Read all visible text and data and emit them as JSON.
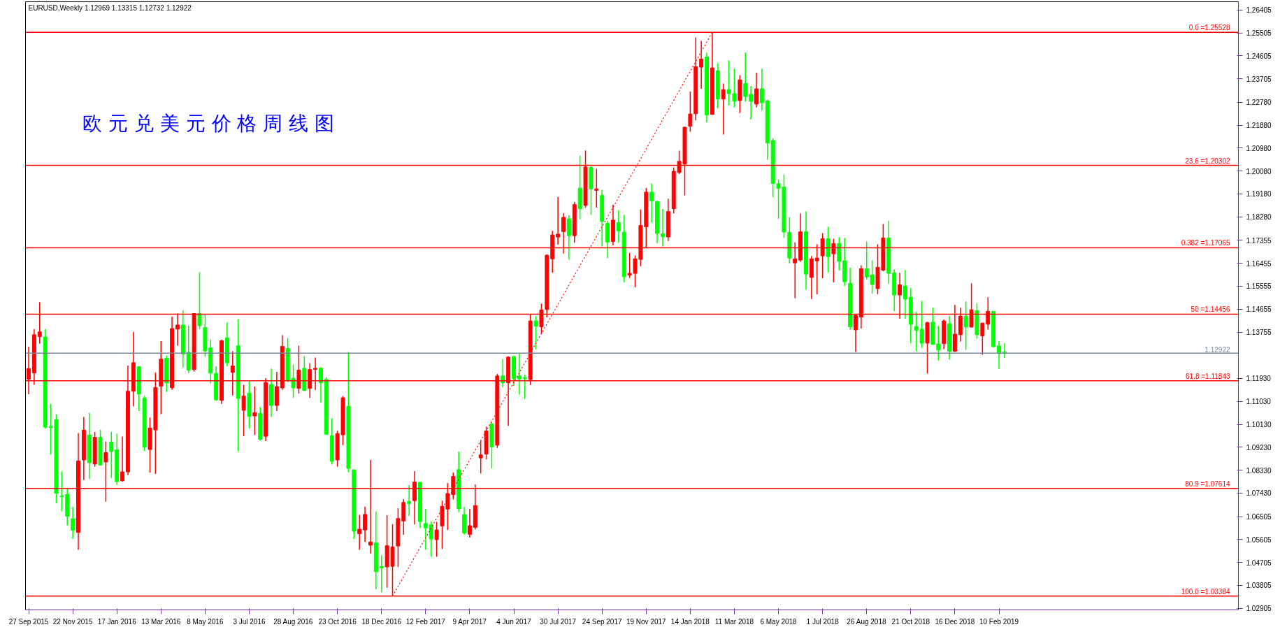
{
  "chart_data": {
    "type": "candlestick",
    "title": "EURUSD,Weekly  1.12969 1.13315 1.12732 1.12922",
    "annotations": [
      "欧 元 兑 美 元 价 格 周 线 图"
    ],
    "x": [
      "2015-09-27",
      "2015-10-04",
      "2015-10-11",
      "2015-10-18",
      "2015-10-25",
      "2015-11-01",
      "2015-11-08",
      "2015-11-15",
      "2015-11-22",
      "2015-11-29",
      "2015-12-06",
      "2015-12-13",
      "2015-12-20",
      "2015-12-27",
      "2016-01-03",
      "2016-01-10",
      "2016-01-17",
      "2016-01-24",
      "2016-01-31",
      "2016-02-07",
      "2016-02-14",
      "2016-02-21",
      "2016-02-28",
      "2016-03-06",
      "2016-03-13",
      "2016-03-20",
      "2016-03-27",
      "2016-04-03",
      "2016-04-10",
      "2016-04-17",
      "2016-04-24",
      "2016-05-01",
      "2016-05-08",
      "2016-05-15",
      "2016-05-22",
      "2016-05-29",
      "2016-06-05",
      "2016-06-12",
      "2016-06-19",
      "2016-06-26",
      "2016-07-03",
      "2016-07-10",
      "2016-07-17",
      "2016-07-24",
      "2016-07-31",
      "2016-08-07",
      "2016-08-14",
      "2016-08-21",
      "2016-08-28",
      "2016-09-04",
      "2016-09-11",
      "2016-09-18",
      "2016-09-25",
      "2016-10-02",
      "2016-10-09",
      "2016-10-16",
      "2016-10-23",
      "2016-10-30",
      "2016-11-06",
      "2016-11-13",
      "2016-11-20",
      "2016-11-27",
      "2016-12-04",
      "2016-12-11",
      "2016-12-18",
      "2016-12-25",
      "2017-01-01",
      "2017-01-08",
      "2017-01-15",
      "2017-01-22",
      "2017-01-29",
      "2017-02-05",
      "2017-02-12",
      "2017-02-19",
      "2017-02-26",
      "2017-03-05",
      "2017-03-12",
      "2017-03-19",
      "2017-03-26",
      "2017-04-02",
      "2017-04-09",
      "2017-04-16",
      "2017-04-23",
      "2017-04-30",
      "2017-05-07",
      "2017-05-14",
      "2017-05-21",
      "2017-05-28",
      "2017-06-04",
      "2017-06-11",
      "2017-06-18",
      "2017-06-25",
      "2017-07-02",
      "2017-07-09",
      "2017-07-16",
      "2017-07-23",
      "2017-07-30",
      "2017-08-06",
      "2017-08-13",
      "2017-08-20",
      "2017-08-27",
      "2017-09-03",
      "2017-09-10",
      "2017-09-17",
      "2017-09-24",
      "2017-10-01",
      "2017-10-08",
      "2017-10-15",
      "2017-10-22",
      "2017-10-29",
      "2017-11-05",
      "2017-11-12",
      "2017-11-19",
      "2017-11-26",
      "2017-12-03",
      "2017-12-10",
      "2017-12-17",
      "2017-12-24",
      "2017-12-31",
      "2018-01-07",
      "2018-01-14",
      "2018-01-21",
      "2018-01-28",
      "2018-02-04",
      "2018-02-11",
      "2018-02-18",
      "2018-02-25",
      "2018-03-04",
      "2018-03-11",
      "2018-03-18",
      "2018-03-25",
      "2018-04-01",
      "2018-04-08",
      "2018-04-15",
      "2018-04-22",
      "2018-04-29",
      "2018-05-06",
      "2018-05-13",
      "2018-05-20",
      "2018-05-27",
      "2018-06-03",
      "2018-06-10",
      "2018-06-17",
      "2018-06-24",
      "2018-07-01",
      "2018-07-08",
      "2018-07-15",
      "2018-07-22",
      "2018-07-29",
      "2018-08-05",
      "2018-08-12",
      "2018-08-19",
      "2018-08-26",
      "2018-09-02",
      "2018-09-09",
      "2018-09-16",
      "2018-09-23",
      "2018-09-30",
      "2018-10-07",
      "2018-10-14",
      "2018-10-21",
      "2018-10-28",
      "2018-11-04",
      "2018-11-11",
      "2018-11-18",
      "2018-11-25",
      "2018-12-02",
      "2018-12-09",
      "2018-12-16",
      "2018-12-23",
      "2018-12-30",
      "2019-01-06",
      "2019-01-13",
      "2019-01-20",
      "2019-01-27",
      "2019-02-03",
      "2019-02-10",
      "2019-02-17"
    ],
    "ohlc": [
      [
        1.119,
        1.1318,
        1.1131,
        1.1232
      ],
      [
        1.1215,
        1.1387,
        1.1168,
        1.1365
      ],
      [
        1.1357,
        1.1493,
        1.133,
        1.1376
      ],
      [
        1.1356,
        1.1387,
        1.0996,
        1.1002
      ],
      [
        1.1004,
        1.1093,
        1.0894,
        1.1
      ],
      [
        1.1031,
        1.1052,
        1.0703,
        1.0742
      ],
      [
        1.0731,
        1.0828,
        1.0671,
        1.0729
      ],
      [
        1.0738,
        1.0764,
        1.0616,
        1.0652
      ],
      [
        1.0642,
        1.0689,
        1.0563,
        1.0597
      ],
      [
        1.0588,
        1.0979,
        1.052,
        1.0869
      ],
      [
        1.0873,
        1.1042,
        1.0794,
        1.099
      ],
      [
        1.0971,
        1.1058,
        1.0798,
        1.0862
      ],
      [
        1.0857,
        1.0983,
        1.0846,
        1.0962
      ],
      [
        1.0962,
        1.0992,
        1.0851,
        1.0853
      ],
      [
        1.0865,
        1.0946,
        1.0709,
        1.0902
      ],
      [
        1.0943,
        1.0984,
        1.0802,
        1.0906
      ],
      [
        1.0913,
        1.0976,
        1.0775,
        1.0788
      ],
      [
        1.0791,
        1.0965,
        1.0788,
        1.0826
      ],
      [
        1.0826,
        1.1244,
        1.0813,
        1.1143
      ],
      [
        1.1143,
        1.1376,
        1.1083,
        1.1255
      ],
      [
        1.1239,
        1.1242,
        1.1065,
        1.1132
      ],
      [
        1.1116,
        1.1124,
        1.0908,
        1.0924
      ],
      [
        1.0914,
        1.104,
        1.0823,
        1.0998
      ],
      [
        1.0991,
        1.1217,
        1.0818,
        1.1157
      ],
      [
        1.1163,
        1.134,
        1.1053,
        1.1269
      ],
      [
        1.1272,
        1.1283,
        1.114,
        1.1176
      ],
      [
        1.1157,
        1.1436,
        1.1149,
        1.1389
      ],
      [
        1.1387,
        1.1449,
        1.1322,
        1.1403
      ],
      [
        1.1403,
        1.146,
        1.1236,
        1.1289
      ],
      [
        1.1296,
        1.14,
        1.1215,
        1.1226
      ],
      [
        1.1228,
        1.145,
        1.122,
        1.1448
      ],
      [
        1.1448,
        1.161,
        1.1387,
        1.14
      ],
      [
        1.1393,
        1.1443,
        1.1278,
        1.1301
      ],
      [
        1.1313,
        1.1346,
        1.1174,
        1.1214
      ],
      [
        1.1213,
        1.124,
        1.1106,
        1.1109
      ],
      [
        1.1107,
        1.1346,
        1.1093,
        1.1341
      ],
      [
        1.1352,
        1.1413,
        1.124,
        1.1255
      ],
      [
        1.1217,
        1.13,
        1.1126,
        1.1242
      ],
      [
        1.1321,
        1.1426,
        1.0906,
        1.1115
      ],
      [
        1.1068,
        1.1168,
        1.0966,
        1.1124
      ],
      [
        1.1136,
        1.1182,
        1.0996,
        1.1044
      ],
      [
        1.1046,
        1.1161,
        1.0971,
        1.1059
      ],
      [
        1.1056,
        1.1081,
        1.0949,
        1.0954
      ],
      [
        1.0966,
        1.1194,
        1.0947,
        1.1177
      ],
      [
        1.1169,
        1.1232,
        1.1041,
        1.1087
      ],
      [
        1.1087,
        1.1219,
        1.1065,
        1.1161
      ],
      [
        1.1156,
        1.1363,
        1.1148,
        1.1319
      ],
      [
        1.1311,
        1.1352,
        1.1178,
        1.1184
      ],
      [
        1.1194,
        1.1248,
        1.1117,
        1.1156
      ],
      [
        1.1154,
        1.1322,
        1.1134,
        1.1226
      ],
      [
        1.1233,
        1.1281,
        1.1144,
        1.1146
      ],
      [
        1.1154,
        1.1253,
        1.1117,
        1.1228
      ],
      [
        1.1229,
        1.1275,
        1.1148,
        1.1233
      ],
      [
        1.1234,
        1.1237,
        1.1098,
        1.1176
      ],
      [
        1.1189,
        1.1198,
        1.0972,
        1.0974
      ],
      [
        1.0968,
        1.1037,
        1.0855,
        1.0868
      ],
      [
        1.0873,
        1.0988,
        1.0847,
        1.0976
      ],
      [
        1.0972,
        1.1124,
        1.0931,
        1.1117
      ],
      [
        1.1084,
        1.1297,
        1.0825,
        1.084
      ],
      [
        1.0834,
        1.0836,
        1.0563,
        1.0593
      ],
      [
        1.0583,
        1.0657,
        1.052,
        1.0601
      ],
      [
        1.0598,
        1.069,
        1.0551,
        1.0659
      ],
      [
        1.0538,
        1.0873,
        1.0505,
        1.0551
      ],
      [
        1.0547,
        1.0671,
        1.0365,
        1.0434
      ],
      [
        1.0454,
        1.0499,
        1.0353,
        1.0449
      ],
      [
        1.0453,
        1.0656,
        1.0371,
        1.0536
      ],
      [
        1.0455,
        1.0621,
        1.0339,
        1.0531
      ],
      [
        1.0535,
        1.0683,
        1.0452,
        1.0643
      ],
      [
        1.0633,
        1.0719,
        1.0579,
        1.0706
      ],
      [
        1.071,
        1.0774,
        1.0653,
        1.0701
      ],
      [
        1.0713,
        1.0829,
        1.062,
        1.0786
      ],
      [
        1.0785,
        1.0788,
        1.0606,
        1.0631
      ],
      [
        1.0623,
        1.0681,
        1.052,
        1.0606
      ],
      [
        1.0618,
        1.0632,
        1.0493,
        1.0563
      ],
      [
        1.056,
        1.063,
        1.0493,
        1.0598
      ],
      [
        1.0614,
        1.0713,
        1.0523,
        1.0691
      ],
      [
        1.068,
        1.0782,
        1.0598,
        1.0741
      ],
      [
        1.0737,
        1.0823,
        1.0718,
        1.0808
      ],
      [
        1.0835,
        1.0906,
        1.0668,
        1.0682
      ],
      [
        1.0658,
        1.0689,
        1.0579,
        1.0586
      ],
      [
        1.0581,
        1.068,
        1.0568,
        1.0615
      ],
      [
        1.0608,
        1.0777,
        1.06,
        1.0694
      ],
      [
        1.0881,
        1.095,
        1.082,
        1.0893
      ],
      [
        1.0896,
        1.1004,
        1.0875,
        1.0987
      ],
      [
        1.1014,
        1.1021,
        1.084,
        1.0924
      ],
      [
        1.0931,
        1.1211,
        1.092,
        1.1203
      ],
      [
        1.1203,
        1.127,
        1.1158,
        1.1176
      ],
      [
        1.1176,
        1.128,
        1.1007,
        1.1277
      ],
      [
        1.1278,
        1.1283,
        1.1164,
        1.1192
      ],
      [
        1.1203,
        1.1292,
        1.113,
        1.1191
      ],
      [
        1.1196,
        1.1209,
        1.1113,
        1.1192
      ],
      [
        1.1189,
        1.1446,
        1.1167,
        1.1419
      ],
      [
        1.1419,
        1.1438,
        1.1307,
        1.1399
      ],
      [
        1.1396,
        1.1487,
        1.137,
        1.1462
      ],
      [
        1.1464,
        1.1681,
        1.1433,
        1.1677
      ],
      [
        1.1663,
        1.1773,
        1.1609,
        1.1757
      ],
      [
        1.1749,
        1.1906,
        1.1719,
        1.176
      ],
      [
        1.177,
        1.1843,
        1.1684,
        1.1826
      ],
      [
        1.182,
        1.1834,
        1.166,
        1.1754
      ],
      [
        1.1754,
        1.1886,
        1.1726,
        1.1876
      ],
      [
        1.1941,
        1.2068,
        1.1819,
        1.186
      ],
      [
        1.1873,
        1.2089,
        1.1864,
        1.2024
      ],
      [
        1.2022,
        1.2027,
        1.1836,
        1.1938
      ],
      [
        1.1932,
        1.2017,
        1.1864,
        1.1938
      ],
      [
        1.1912,
        1.1934,
        1.1712,
        1.181
      ],
      [
        1.1802,
        1.1813,
        1.1666,
        1.1729
      ],
      [
        1.1731,
        1.1876,
        1.1716,
        1.1815
      ],
      [
        1.1805,
        1.1854,
        1.1726,
        1.1773
      ],
      [
        1.1768,
        1.1836,
        1.1571,
        1.1593
      ],
      [
        1.1599,
        1.1687,
        1.1588,
        1.1606
      ],
      [
        1.1606,
        1.1676,
        1.1551,
        1.1663
      ],
      [
        1.1661,
        1.1857,
        1.1634,
        1.1794
      ],
      [
        1.1789,
        1.1941,
        1.1707,
        1.1925
      ],
      [
        1.1925,
        1.1959,
        1.1805,
        1.1891
      ],
      [
        1.1888,
        1.1891,
        1.1725,
        1.1763
      ],
      [
        1.1761,
        1.1859,
        1.1712,
        1.175
      ],
      [
        1.1749,
        1.1899,
        1.1733,
        1.1849
      ],
      [
        1.186,
        1.2022,
        1.1841,
        1.2007
      ],
      [
        1.2002,
        1.2088,
        1.1996,
        1.2046
      ],
      [
        1.2035,
        1.2182,
        1.1912,
        1.218
      ],
      [
        1.2184,
        1.232,
        1.2162,
        1.2232
      ],
      [
        1.2233,
        1.2533,
        1.2207,
        1.2418
      ],
      [
        1.2416,
        1.2519,
        1.2331,
        1.2448
      ],
      [
        1.2456,
        1.2473,
        1.2199,
        1.2228
      ],
      [
        1.2231,
        1.2553,
        1.2228,
        1.2413
      ],
      [
        1.2402,
        1.2432,
        1.2255,
        1.2291
      ],
      [
        1.2291,
        1.2352,
        1.2151,
        1.2328
      ],
      [
        1.2328,
        1.2443,
        1.2266,
        1.2312
      ],
      [
        1.2312,
        1.241,
        1.2258,
        1.2282
      ],
      [
        1.2285,
        1.2385,
        1.2236,
        1.2366
      ],
      [
        1.2352,
        1.2473,
        1.228,
        1.2301
      ],
      [
        1.2309,
        1.2342,
        1.221,
        1.2282
      ],
      [
        1.2271,
        1.2394,
        1.2258,
        1.2331
      ],
      [
        1.2331,
        1.241,
        1.2246,
        1.2276
      ],
      [
        1.2284,
        1.2288,
        1.2052,
        1.2118
      ],
      [
        1.2128,
        1.2136,
        1.1906,
        1.1959
      ],
      [
        1.1958,
        1.1975,
        1.182,
        1.194
      ],
      [
        1.1945,
        1.1994,
        1.1745,
        1.1768
      ],
      [
        1.1767,
        1.1827,
        1.1645,
        1.1666
      ],
      [
        1.1647,
        1.1728,
        1.1508,
        1.1663
      ],
      [
        1.1658,
        1.1841,
        1.1651,
        1.1769
      ],
      [
        1.1769,
        1.1849,
        1.1541,
        1.1603
      ],
      [
        1.159,
        1.1674,
        1.1505,
        1.1663
      ],
      [
        1.1655,
        1.172,
        1.1524,
        1.1666
      ],
      [
        1.1675,
        1.1764,
        1.1587,
        1.1742
      ],
      [
        1.1742,
        1.1789,
        1.1609,
        1.1672
      ],
      [
        1.1683,
        1.1742,
        1.1571,
        1.1723
      ],
      [
        1.1723,
        1.1748,
        1.1617,
        1.1653
      ],
      [
        1.1655,
        1.1745,
        1.1557,
        1.1573
      ],
      [
        1.1567,
        1.1628,
        1.1385,
        1.1396
      ],
      [
        1.1384,
        1.1446,
        1.1297,
        1.1441
      ],
      [
        1.1434,
        1.1638,
        1.1389,
        1.1624
      ],
      [
        1.1624,
        1.1731,
        1.1582,
        1.1592
      ],
      [
        1.16,
        1.1657,
        1.1527,
        1.1562
      ],
      [
        1.1546,
        1.172,
        1.1524,
        1.163
      ],
      [
        1.1619,
        1.18,
        1.1614,
        1.1745
      ],
      [
        1.1745,
        1.1813,
        1.1565,
        1.1606
      ],
      [
        1.1608,
        1.1622,
        1.1458,
        1.1521
      ],
      [
        1.1521,
        1.1608,
        1.1428,
        1.1561
      ],
      [
        1.1556,
        1.1619,
        1.1428,
        1.1505
      ],
      [
        1.1512,
        1.1548,
        1.1332,
        1.1406
      ],
      [
        1.1397,
        1.1455,
        1.13,
        1.1382
      ],
      [
        1.1386,
        1.1498,
        1.1313,
        1.1332
      ],
      [
        1.1332,
        1.1416,
        1.1212,
        1.1412
      ],
      [
        1.1414,
        1.1471,
        1.1325,
        1.1327
      ],
      [
        1.1329,
        1.14,
        1.1264,
        1.1305
      ],
      [
        1.133,
        1.1425,
        1.1308,
        1.1419
      ],
      [
        1.1408,
        1.1438,
        1.1267,
        1.13
      ],
      [
        1.13,
        1.1482,
        1.1297,
        1.1367
      ],
      [
        1.1365,
        1.1471,
        1.1338,
        1.1438
      ],
      [
        1.1438,
        1.1496,
        1.1305,
        1.1395
      ],
      [
        1.1395,
        1.1567,
        1.1393,
        1.1463
      ],
      [
        1.146,
        1.1488,
        1.1349,
        1.1365
      ],
      [
        1.136,
        1.1411,
        1.1286,
        1.1411
      ],
      [
        1.1406,
        1.1512,
        1.1385,
        1.1457
      ],
      [
        1.1457,
        1.1457,
        1.1316,
        1.1318
      ],
      [
        1.1321,
        1.1339,
        1.1231,
        1.1291
      ],
      [
        1.12969,
        1.13315,
        1.12732,
        1.12922
      ]
    ],
    "colors": [
      "#ff0000",
      "#ff0000",
      "#ff0000",
      "#00ff00",
      "#00ff00",
      "#00ff00",
      "#00ff00",
      "#00ff00",
      "#00ff00",
      "#ff0000",
      "#ff0000",
      "#00ff00",
      "#ff0000",
      "#00ff00",
      "#ff0000",
      "#00ff00",
      "#00ff00",
      "#ff0000",
      "#ff0000",
      "#ff0000",
      "#00ff00",
      "#00ff00",
      "#ff0000",
      "#ff0000",
      "#ff0000",
      "#00ff00",
      "#ff0000",
      "#ff0000",
      "#00ff00",
      "#00ff00",
      "#ff0000",
      "#00ff00",
      "#00ff00",
      "#00ff00",
      "#00ff00",
      "#ff0000",
      "#00ff00",
      "#ff0000",
      "#00ff00",
      "#ff0000",
      "#00ff00",
      "#ff0000",
      "#00ff00",
      "#ff0000",
      "#00ff00",
      "#ff0000",
      "#ff0000",
      "#00ff00",
      "#00ff00",
      "#ff0000",
      "#00ff00",
      "#ff0000",
      "#ff0000",
      "#00ff00",
      "#00ff00",
      "#00ff00",
      "#ff0000",
      "#ff0000",
      "#00ff00",
      "#00ff00",
      "#ff0000",
      "#ff0000",
      "#ff0000",
      "#00ff00",
      "#00ff00",
      "#ff0000",
      "#ff0000",
      "#ff0000",
      "#ff0000",
      "#00ff00",
      "#ff0000",
      "#00ff00",
      "#00ff00",
      "#00ff00",
      "#ff0000",
      "#ff0000",
      "#ff0000",
      "#ff0000",
      "#00ff00",
      "#00ff00",
      "#ff0000",
      "#ff0000",
      "#ff0000",
      "#ff0000",
      "#00ff00",
      "#ff0000",
      "#00ff00",
      "#ff0000",
      "#00ff00",
      "#00ff00",
      "#00ff00",
      "#ff0000",
      "#00ff00",
      "#ff0000",
      "#ff0000",
      "#ff0000",
      "#ff0000",
      "#ff0000",
      "#00ff00",
      "#ff0000",
      "#00ff00",
      "#ff0000",
      "#00ff00",
      "#ff0000",
      "#00ff00",
      "#00ff00",
      "#ff0000",
      "#00ff00",
      "#00ff00",
      "#ff0000",
      "#ff0000",
      "#ff0000",
      "#ff0000",
      "#00ff00",
      "#00ff00",
      "#00ff00",
      "#ff0000",
      "#ff0000",
      "#ff0000",
      "#ff0000",
      "#ff0000",
      "#ff0000",
      "#ff0000",
      "#00ff00",
      "#ff0000",
      "#00ff00",
      "#ff0000",
      "#00ff00",
      "#00ff00",
      "#ff0000",
      "#00ff00",
      "#00ff00",
      "#ff0000",
      "#00ff00",
      "#00ff00",
      "#00ff00",
      "#00ff00",
      "#00ff00",
      "#00ff00",
      "#ff0000",
      "#ff0000",
      "#00ff00",
      "#ff0000",
      "#ff0000",
      "#ff0000",
      "#00ff00",
      "#ff0000",
      "#00ff00",
      "#00ff00",
      "#00ff00",
      "#ff0000",
      "#ff0000",
      "#00ff00",
      "#00ff00",
      "#ff0000",
      "#ff0000",
      "#00ff00",
      "#00ff00",
      "#ff0000",
      "#00ff00",
      "#00ff00",
      "#00ff00",
      "#00ff00",
      "#ff0000",
      "#00ff00",
      "#00ff00",
      "#ff0000",
      "#00ff00",
      "#ff0000",
      "#ff0000",
      "#00ff00",
      "#ff0000",
      "#00ff00",
      "#ff0000",
      "#ff0000",
      "#00ff00",
      "#00ff00",
      "#00ff00"
    ],
    "series": [
      {
        "type": "line",
        "x": [
          "2017-01-01",
          "2018-02-11"
        ],
        "values": [
          1.0338,
          1.2553
        ],
        "color": "#ff0000",
        "line_style": "dotted"
      }
    ],
    "ref_lines": [
      {
        "axis": "y",
        "value": 1.25528,
        "label": "0.0 =1.25528",
        "color": "#ff0000"
      },
      {
        "axis": "y",
        "value": 1.20302,
        "label": "23.6 =1.20302",
        "color": "#ff0000"
      },
      {
        "axis": "y",
        "value": 1.17065,
        "label": "0.382 =1.17065",
        "color": "#ff0000"
      },
      {
        "axis": "y",
        "value": 1.14456,
        "label": "50 =1.14456",
        "color": "#ff0000"
      },
      {
        "axis": "y",
        "value": 1.11843,
        "label": "61.8 =1.11843",
        "color": "#ff0000"
      },
      {
        "axis": "y",
        "value": 1.07614,
        "label": "80.9 =1.07614",
        "color": "#ff0000"
      },
      {
        "axis": "y",
        "value": 1.03384,
        "label": "100.0 =1.03384",
        "color": "#ff0000"
      },
      {
        "axis": "y",
        "value": 1.12922,
        "label": "1.12922",
        "color": "#778899"
      }
    ],
    "xlim": [
      "2015-09-23",
      "2019-12-11"
    ],
    "xticks": [
      {
        "value": "2015-09-27",
        "label": "27 Sep 2015"
      },
      {
        "value": "2015-11-22",
        "label": "22 Nov 2015"
      },
      {
        "value": "2016-01-17",
        "label": "17 Jan 2016"
      },
      {
        "value": "2016-03-13",
        "label": "13 Mar 2016"
      },
      {
        "value": "2016-05-08",
        "label": "8 May 2016"
      },
      {
        "value": "2016-07-03",
        "label": "3 Jul 2016"
      },
      {
        "value": "2016-08-28",
        "label": "28 Aug 2016"
      },
      {
        "value": "2016-10-23",
        "label": "23 Oct 2016"
      },
      {
        "value": "2016-12-18",
        "label": "18 Dec 2016"
      },
      {
        "value": "2017-02-12",
        "label": "12 Feb 2017"
      },
      {
        "value": "2017-04-09",
        "label": "9 Apr 2017"
      },
      {
        "value": "2017-06-04",
        "label": "4 Jun 2017"
      },
      {
        "value": "2017-07-30",
        "label": "30 Jul 2017"
      },
      {
        "value": "2017-09-24",
        "label": "24 Sep 2017"
      },
      {
        "value": "2017-11-19",
        "label": "19 Nov 2017"
      },
      {
        "value": "2018-01-14",
        "label": "14 Jan 2018"
      },
      {
        "value": "2018-03-11",
        "label": "11 Mar 2018"
      },
      {
        "value": "2018-05-06",
        "label": "6 May 2018"
      },
      {
        "value": "2018-07-01",
        "label": "1 Jul 2018"
      },
      {
        "value": "2018-08-26",
        "label": "26 Aug 2018"
      },
      {
        "value": "2018-10-21",
        "label": "21 Oct 2018"
      },
      {
        "value": "2018-12-16",
        "label": "16 Dec 2018"
      },
      {
        "value": "2019-02-10",
        "label": "10 Feb 2019"
      }
    ],
    "ylim": [
      1.0284,
      1.2673
    ],
    "yticks": [
      {
        "value": 1.26405,
        "label": "1.26405"
      },
      {
        "value": 1.25505,
        "label": "1.25505"
      },
      {
        "value": 1.24605,
        "label": "1.24605"
      },
      {
        "value": 1.23705,
        "label": "1.23705"
      },
      {
        "value": 1.2278,
        "label": "1.22780"
      },
      {
        "value": 1.2188,
        "label": "1.21880"
      },
      {
        "value": 1.2098,
        "label": "1.20980"
      },
      {
        "value": 1.2008,
        "label": "1.20080"
      },
      {
        "value": 1.1918,
        "label": "1.19180"
      },
      {
        "value": 1.1828,
        "label": "1.18280"
      },
      {
        "value": 1.17355,
        "label": "1.17355"
      },
      {
        "value": 1.16455,
        "label": "1.16455"
      },
      {
        "value": 1.15555,
        "label": "1.15555"
      },
      {
        "value": 1.14655,
        "label": "1.14655"
      },
      {
        "value": 1.13755,
        "label": "1.13755"
      },
      {
        "value": 1.1193,
        "label": "1.11930"
      },
      {
        "value": 1.1103,
        "label": "1.11030"
      },
      {
        "value": 1.1013,
        "label": "1.10130"
      },
      {
        "value": 1.0923,
        "label": "1.09230"
      },
      {
        "value": 1.0833,
        "label": "1.08330"
      },
      {
        "value": 1.0743,
        "label": "1.07430"
      },
      {
        "value": 1.06505,
        "label": "1.06505"
      },
      {
        "value": 1.05605,
        "label": "1.05605"
      },
      {
        "value": 1.04705,
        "label": "1.04705"
      },
      {
        "value": 1.03805,
        "label": "1.03805"
      },
      {
        "value": 1.02905,
        "label": "1.02905"
      }
    ]
  }
}
